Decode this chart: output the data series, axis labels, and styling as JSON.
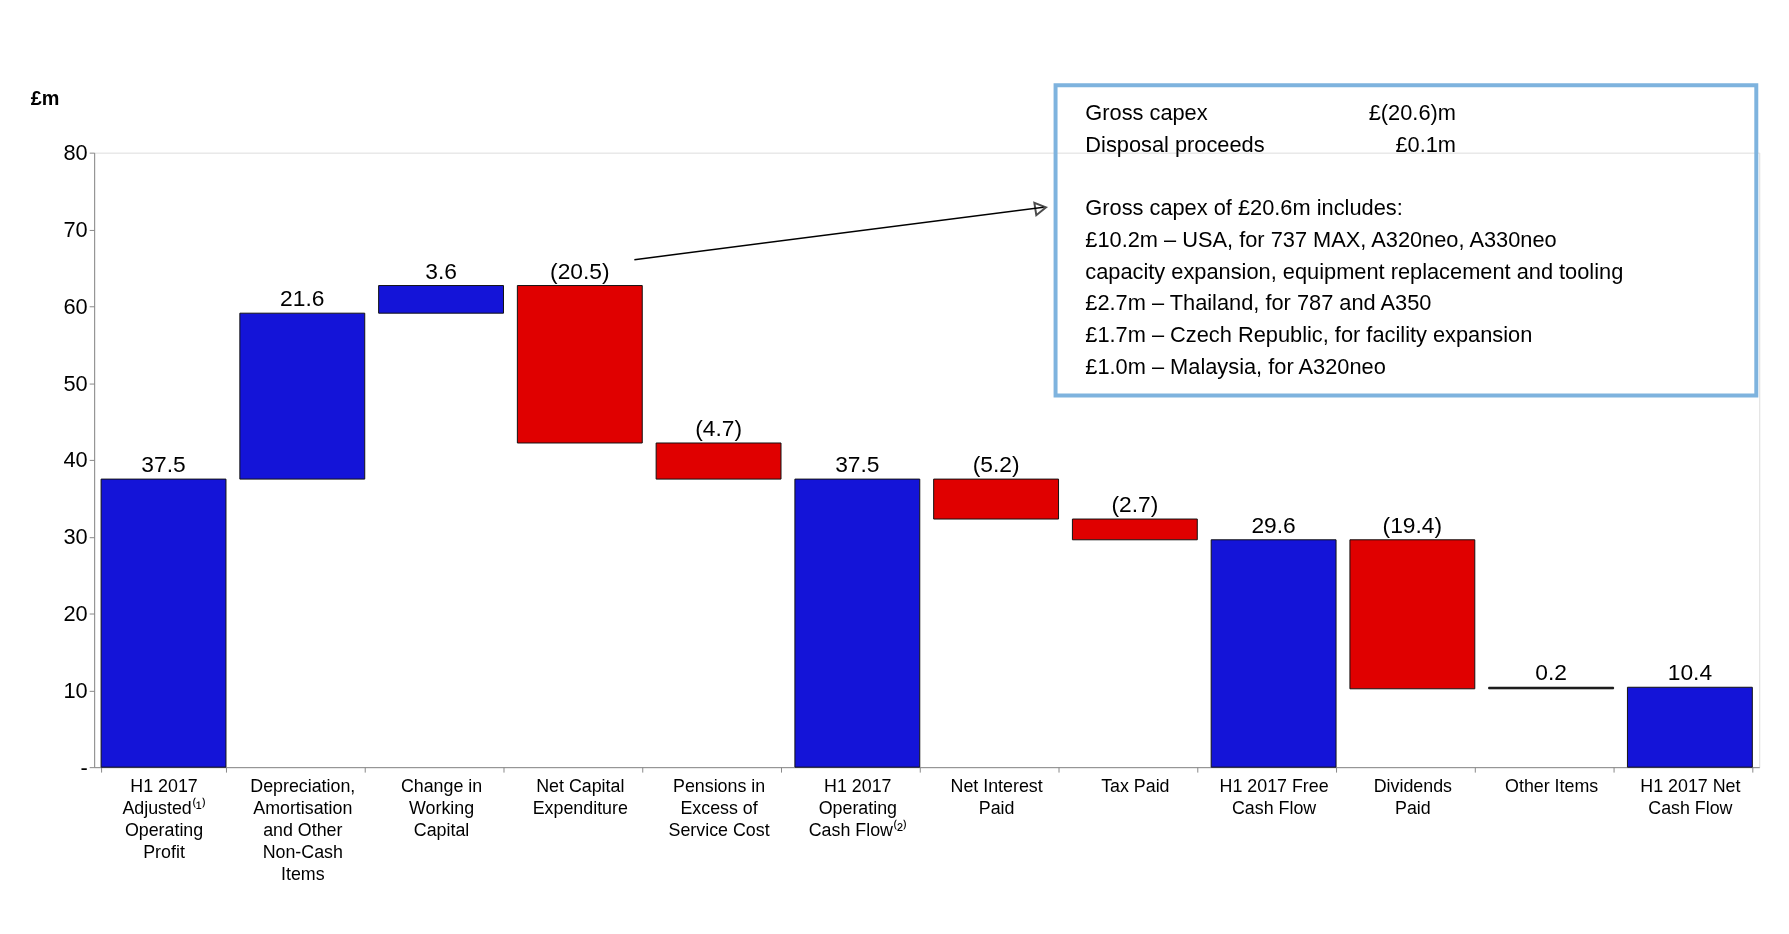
{
  "chart_data": {
    "type": "bar",
    "ylabel": "£m",
    "categories": [
      "H1 2017 Adjusted⁽¹⁾ Operating Profit",
      "Depreciation, Amortisation and Other Non-Cash Items",
      "Change in Working Capital",
      "Net Capital Expenditure",
      "Pensions in Excess of Service Cost",
      "H1 2017 Operating Cash Flow⁽²⁾",
      "Net Interest Paid",
      "Tax Paid",
      "H1 2017 Free Cash Flow",
      "Dividends Paid",
      "Other Items",
      "H1 2017 Net Cash Flow"
    ],
    "values": [
      37.5,
      21.6,
      3.6,
      -20.5,
      -4.7,
      37.5,
      -5.2,
      -2.7,
      29.6,
      -19.4,
      0.2,
      10.4
    ],
    "base": [
      0,
      37.5,
      59.1,
      62.7,
      42.2,
      0,
      37.5,
      32.3,
      0,
      29.6,
      10.2,
      0
    ],
    "colors": [
      "#1414d8",
      "#1414d8",
      "#1414d8",
      "#e00000",
      "#e00000",
      "#1414d8",
      "#e00000",
      "#e00000",
      "#1414d8",
      "#e00000",
      "#000000",
      "#1414d8"
    ],
    "value_labels": [
      "37.5",
      "21.6",
      "3.6",
      "(20.5)",
      "(4.7)",
      "37.5",
      "(5.2)",
      "(2.7)",
      "29.6",
      "(19.4)",
      "0.2",
      "10.4"
    ],
    "ylim": [
      0,
      80
    ],
    "yticks": [
      {
        "value": 0,
        "label": "-"
      },
      10,
      20,
      30,
      40,
      50,
      60,
      70,
      80
    ],
    "grid": false,
    "annotations": [
      "Gross capex",
      "£(20.6)m",
      "Disposal proceeds",
      "£0.1m",
      "Gross capex of £20.6m includes:",
      "£10.2m – USA, for 737 MAX, A320neo, A330neo",
      "capacity expansion, equipment replacement and tooling",
      "£2.7m – Thailand, for 787 and A350",
      "£1.7m – Czech Republic, for facility expansion",
      "£1.0m – Malaysia, for A320neo"
    ]
  }
}
